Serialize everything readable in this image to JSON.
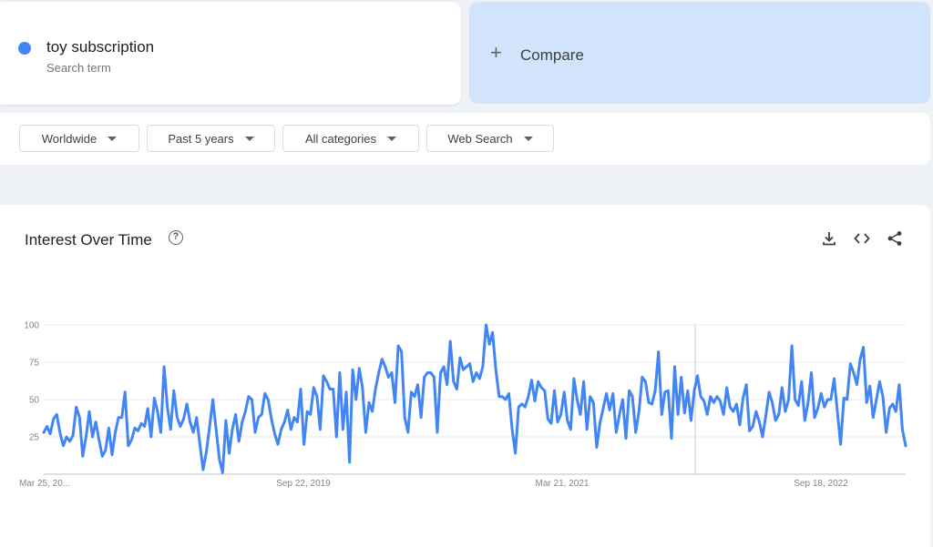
{
  "search_term": {
    "name": "toy subscription",
    "type_label": "Search term",
    "color": "#4285f4"
  },
  "compare": {
    "plus": "+",
    "label": "Compare"
  },
  "filters": [
    {
      "label": "Worldwide"
    },
    {
      "label": "Past 5 years"
    },
    {
      "label": "All categories"
    },
    {
      "label": "Web Search"
    }
  ],
  "chart_section": {
    "title": "Interest Over Time",
    "help_glyph": "?",
    "icons": [
      "download-icon",
      "embed-code-icon",
      "share-icon"
    ]
  },
  "chart_data": {
    "type": "line",
    "title": "",
    "xlabel": "",
    "ylabel": "",
    "ylim": [
      0,
      100
    ],
    "yticks": [
      25,
      50,
      75,
      100
    ],
    "xtick_labels": [
      "Mar 25, 20...",
      "Sep 22, 2019",
      "Mar 21, 2021",
      "Sep 18, 2022"
    ],
    "x_start": "2018-03-25",
    "interval": "weekly",
    "series": [
      {
        "color": "#4285f4",
        "values": [
          28,
          32,
          27,
          37,
          40,
          28,
          19,
          25,
          22,
          26,
          45,
          38,
          12,
          25,
          42,
          25,
          35,
          23,
          12,
          16,
          31,
          13,
          28,
          38,
          38,
          55,
          19,
          23,
          31,
          29,
          34,
          32,
          44,
          25,
          51,
          42,
          28,
          72,
          45,
          30,
          56,
          38,
          32,
          37,
          47,
          35,
          28,
          38,
          20,
          3,
          15,
          32,
          50,
          30,
          10,
          1,
          36,
          14,
          30,
          40,
          22,
          35,
          42,
          52,
          50,
          28,
          38,
          40,
          54,
          50,
          37,
          27,
          20,
          30,
          35,
          43,
          30,
          38,
          35,
          57,
          20,
          42,
          40,
          58,
          52,
          30,
          66,
          62,
          57,
          57,
          25,
          68,
          30,
          55,
          8,
          70,
          50,
          71,
          58,
          28,
          48,
          42,
          57,
          68,
          77,
          72,
          65,
          68,
          48,
          86,
          82,
          38,
          28,
          55,
          52,
          60,
          38,
          65,
          68,
          68,
          65,
          28,
          68,
          72,
          60,
          89,
          62,
          57,
          78,
          70,
          72,
          74,
          62,
          68,
          64,
          72,
          100,
          87,
          95,
          70,
          52,
          52,
          50,
          54,
          30,
          14,
          45,
          47,
          45,
          52,
          63,
          49,
          62,
          58,
          56,
          37,
          34,
          56,
          35,
          40,
          55,
          36,
          30,
          64,
          50,
          40,
          62,
          30,
          52,
          48,
          18,
          34,
          44,
          54,
          43,
          54,
          28,
          40,
          50,
          24,
          56,
          52,
          28,
          42,
          65,
          62,
          48,
          47,
          56,
          82,
          40,
          55,
          56,
          24,
          72,
          40,
          65,
          41,
          56,
          36,
          56,
          66,
          52,
          49,
          40,
          52,
          48,
          52,
          49,
          40,
          58,
          45,
          42,
          47,
          33,
          51,
          60,
          29,
          32,
          42,
          35,
          25,
          39,
          55,
          48,
          36,
          40,
          58,
          42,
          50,
          86,
          50,
          46,
          62,
          36,
          48,
          68,
          38,
          44,
          54,
          45,
          50,
          50,
          64,
          42,
          20,
          51,
          50,
          74,
          68,
          60,
          77,
          85,
          48,
          59,
          38,
          50,
          62,
          52,
          28,
          44,
          47,
          42,
          60,
          30,
          19
        ]
      }
    ]
  }
}
